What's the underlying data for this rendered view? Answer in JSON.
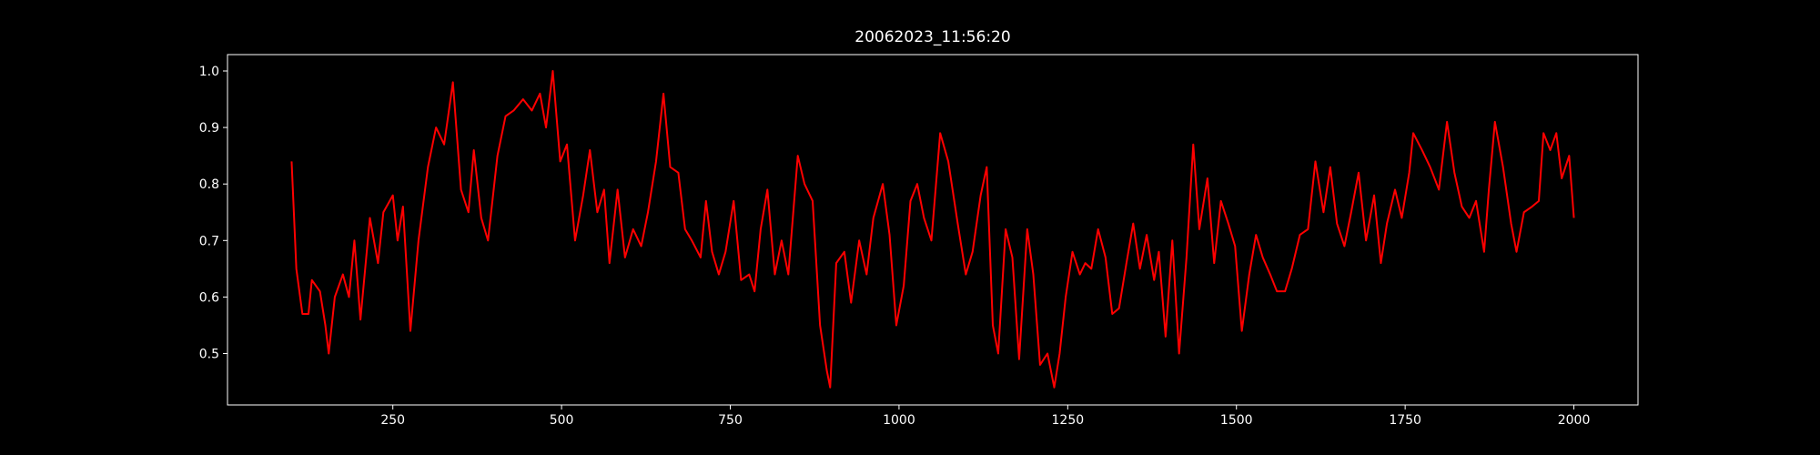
{
  "chart_data": {
    "type": "line",
    "title": "20062023_11:56:20",
    "x": [
      100,
      107,
      116,
      125,
      130,
      142,
      150,
      155,
      164,
      176,
      185,
      193,
      202,
      216,
      228,
      236,
      250,
      257,
      265,
      276,
      288,
      302,
      314,
      326,
      339,
      351,
      362,
      370,
      381,
      391,
      405,
      417,
      429,
      443,
      456,
      468,
      477,
      487,
      498,
      508,
      520,
      532,
      542,
      553,
      563,
      571,
      583,
      594,
      606,
      618,
      628,
      640,
      651,
      661,
      673,
      683,
      693,
      706,
      714,
      723,
      733,
      743,
      755,
      766,
      778,
      786,
      795,
      805,
      816,
      826,
      836,
      850,
      860,
      872,
      883,
      893,
      898,
      907,
      919,
      929,
      941,
      952,
      962,
      976,
      986,
      996,
      1007,
      1017,
      1027,
      1037,
      1048,
      1061,
      1073,
      1087,
      1099,
      1109,
      1121,
      1130,
      1139,
      1147,
      1158,
      1168,
      1178,
      1190,
      1199,
      1209,
      1220,
      1230,
      1238,
      1247,
      1257,
      1268,
      1276,
      1285,
      1295,
      1306,
      1316,
      1326,
      1337,
      1347,
      1357,
      1367,
      1378,
      1385,
      1395,
      1405,
      1415,
      1426,
      1436,
      1445,
      1457,
      1467,
      1477,
      1488,
      1498,
      1508,
      1519,
      1529,
      1539,
      1550,
      1560,
      1572,
      1582,
      1594,
      1606,
      1617,
      1629,
      1639,
      1649,
      1660,
      1670,
      1681,
      1692,
      1704,
      1714,
      1723,
      1735,
      1745,
      1756,
      1762,
      1775,
      1787,
      1800,
      1812,
      1823,
      1834,
      1845,
      1855,
      1867,
      1874,
      1883,
      1895,
      1907,
      1915,
      1926,
      1938,
      1948,
      1955,
      1965,
      1974,
      1982,
      1993,
      2000
    ],
    "series": [
      {
        "color": "#ff0000",
        "values": [
          0.84,
          0.65,
          0.57,
          0.57,
          0.63,
          0.61,
          0.55,
          0.5,
          0.6,
          0.64,
          0.6,
          0.7,
          0.56,
          0.74,
          0.66,
          0.75,
          0.78,
          0.7,
          0.76,
          0.54,
          0.7,
          0.83,
          0.9,
          0.87,
          0.98,
          0.79,
          0.75,
          0.86,
          0.74,
          0.7,
          0.85,
          0.92,
          0.93,
          0.95,
          0.93,
          0.96,
          0.9,
          1.0,
          0.84,
          0.87,
          0.7,
          0.78,
          0.86,
          0.75,
          0.79,
          0.66,
          0.79,
          0.67,
          0.72,
          0.69,
          0.75,
          0.84,
          0.96,
          0.83,
          0.82,
          0.72,
          0.7,
          0.67,
          0.77,
          0.68,
          0.64,
          0.68,
          0.77,
          0.63,
          0.64,
          0.61,
          0.72,
          0.79,
          0.64,
          0.7,
          0.64,
          0.85,
          0.8,
          0.77,
          0.55,
          0.47,
          0.44,
          0.66,
          0.68,
          0.59,
          0.7,
          0.64,
          0.74,
          0.8,
          0.71,
          0.55,
          0.62,
          0.77,
          0.8,
          0.74,
          0.7,
          0.89,
          0.84,
          0.73,
          0.64,
          0.68,
          0.78,
          0.83,
          0.55,
          0.5,
          0.72,
          0.67,
          0.49,
          0.72,
          0.64,
          0.48,
          0.5,
          0.44,
          0.5,
          0.6,
          0.68,
          0.64,
          0.66,
          0.65,
          0.72,
          0.67,
          0.57,
          0.58,
          0.66,
          0.73,
          0.65,
          0.71,
          0.63,
          0.68,
          0.53,
          0.7,
          0.5,
          0.67,
          0.87,
          0.72,
          0.81,
          0.66,
          0.77,
          0.73,
          0.69,
          0.54,
          0.64,
          0.71,
          0.67,
          0.64,
          0.61,
          0.61,
          0.65,
          0.71,
          0.72,
          0.84,
          0.75,
          0.83,
          0.73,
          0.69,
          0.75,
          0.82,
          0.7,
          0.78,
          0.66,
          0.73,
          0.79,
          0.74,
          0.82,
          0.89,
          0.86,
          0.83,
          0.79,
          0.91,
          0.82,
          0.76,
          0.74,
          0.77,
          0.68,
          0.79,
          0.91,
          0.83,
          0.73,
          0.68,
          0.75,
          0.76,
          0.77,
          0.89,
          0.86,
          0.89,
          0.81,
          0.85,
          0.74
        ]
      }
    ],
    "xlim": [
      5,
      2095
    ],
    "ylim": [
      0.409,
      1.029
    ],
    "xticks": [
      250,
      500,
      750,
      1000,
      1250,
      1500,
      1750,
      2000
    ],
    "yticks": [
      {
        "value": 0.5,
        "label": "0.5"
      },
      {
        "value": 0.6,
        "label": "0.6"
      },
      {
        "value": 0.7,
        "label": "0.7"
      },
      {
        "value": 0.8,
        "label": "0.8"
      },
      {
        "value": 0.9,
        "label": "0.9"
      },
      {
        "value": 1.0,
        "label": "1.0"
      }
    ]
  }
}
